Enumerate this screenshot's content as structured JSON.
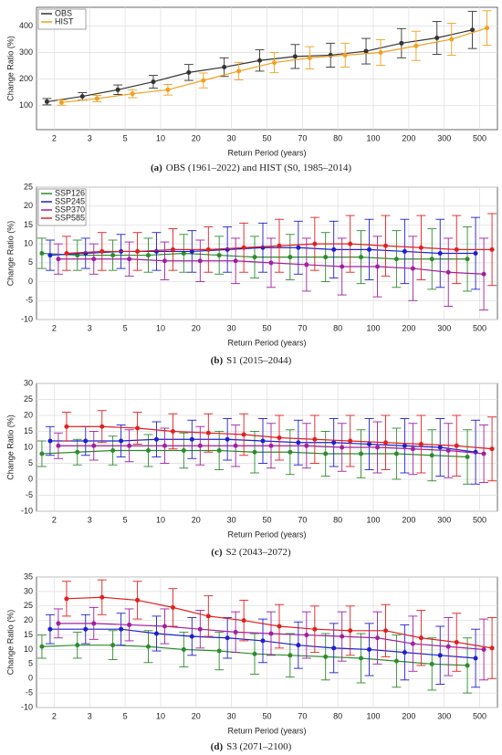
{
  "chart_data": [
    {
      "type": "line",
      "caption_label": "(a)",
      "caption": "OBS (1961–2022) and HIST (S0, 1985–2014)",
      "x_label": "Return Period (years)",
      "y_label": "Change Ratio (%)",
      "categories": [
        "2",
        "3",
        "5",
        "10",
        "20",
        "30",
        "50",
        "70",
        "80",
        "100",
        "200",
        "300",
        "500"
      ],
      "ylim": [
        10,
        470
      ],
      "yticks": [
        100,
        200,
        300,
        400
      ],
      "grid": true,
      "legend": "upper left",
      "series": [
        {
          "name": "OBS",
          "color": "#333333",
          "values": [
            115,
            135,
            160,
            190,
            225,
            245,
            270,
            285,
            290,
            305,
            335,
            355,
            385
          ],
          "errors": [
            12,
            14,
            18,
            24,
            30,
            35,
            40,
            45,
            45,
            48,
            55,
            62,
            70
          ]
        },
        {
          "name": "HIST",
          "color": "#f0a020",
          "values": [
            112,
            127,
            145,
            160,
            195,
            230,
            262,
            280,
            290,
            300,
            325,
            350,
            392
          ],
          "errors": [
            10,
            12,
            15,
            20,
            28,
            33,
            38,
            42,
            45,
            48,
            55,
            60,
            65
          ]
        }
      ]
    },
    {
      "type": "line",
      "caption_label": "(b)",
      "caption": "S1 (2015–2044)",
      "x_label": "Return Period (years)",
      "y_label": "Change Ratio (%)",
      "categories": [
        "2",
        "3",
        "5",
        "10",
        "20",
        "30",
        "50",
        "70",
        "80",
        "100",
        "200",
        "300",
        "500"
      ],
      "ylim": [
        -10,
        25
      ],
      "yticks": [
        -10,
        -5,
        0,
        5,
        10,
        15,
        20,
        25
      ],
      "grid": true,
      "legend": "upper left",
      "series": [
        {
          "name": "SSP126",
          "color": "#2e8b2e",
          "values": [
            7.5,
            7,
            7,
            7,
            7.5,
            7,
            6.5,
            6.5,
            6.5,
            6.5,
            6,
            6,
            6
          ],
          "errors": [
            4,
            4,
            4,
            4.5,
            5,
            5,
            5.5,
            6,
            6.5,
            7,
            7.5,
            8,
            8.5
          ]
        },
        {
          "name": "SSP245",
          "color": "#1f1fd0",
          "values": [
            7,
            7.5,
            8,
            8,
            8,
            8.5,
            9,
            9,
            8.5,
            8.5,
            8,
            7.5,
            7.5
          ],
          "errors": [
            4,
            4,
            4.5,
            5,
            5.5,
            6,
            6.5,
            7,
            7.5,
            8,
            8.5,
            9,
            9.5
          ]
        },
        {
          "name": "SSP370",
          "color": "#a020a0",
          "values": [
            6,
            6,
            6,
            5.5,
            5.5,
            5.5,
            5,
            4.5,
            4,
            4,
            3.5,
            2.5,
            2
          ],
          "errors": [
            4,
            4,
            4.5,
            5,
            5.5,
            6,
            6.5,
            7,
            7.5,
            8,
            8.5,
            9,
            9.5
          ]
        },
        {
          "name": "SSP585",
          "color": "#e02020",
          "values": [
            7.5,
            8,
            8,
            8.5,
            8.5,
            9,
            9.5,
            10,
            10,
            9.5,
            9,
            8.5,
            8.5
          ],
          "errors": [
            4.5,
            5,
            5,
            5.5,
            6,
            6.5,
            7,
            7,
            7.5,
            8,
            8.5,
            9,
            9.5
          ]
        }
      ]
    },
    {
      "type": "line",
      "caption_label": "(c)",
      "caption": "S2 (2043–2072)",
      "x_label": "Return Period (years)",
      "y_label": "Change Ratio (%)",
      "categories": [
        "2",
        "3",
        "5",
        "10",
        "20",
        "30",
        "50",
        "70",
        "80",
        "100",
        "200",
        "300",
        "500"
      ],
      "ylim": [
        -10,
        30
      ],
      "yticks": [
        -10,
        -5,
        0,
        5,
        10,
        15,
        20,
        25,
        30
      ],
      "grid": true,
      "series": [
        {
          "name": "SSP126",
          "color": "#2e8b2e",
          "values": [
            8,
            8.5,
            9,
            9,
            9,
            9,
            8.5,
            8.5,
            8,
            8,
            8,
            7.5,
            7
          ],
          "errors": [
            4,
            4,
            4.5,
            5,
            5.5,
            6,
            6.5,
            7,
            7,
            7.5,
            8,
            8,
            8.5
          ]
        },
        {
          "name": "SSP245",
          "color": "#1f1fd0",
          "values": [
            12,
            12,
            12,
            12.5,
            12.5,
            12.5,
            12,
            11.5,
            11.5,
            11,
            10.5,
            10,
            8.5
          ],
          "errors": [
            4.5,
            4.5,
            5,
            5.5,
            6,
            6.5,
            7,
            7,
            7.5,
            8,
            8.5,
            9,
            10
          ]
        },
        {
          "name": "SSP370",
          "color": "#a020a0",
          "values": [
            10.5,
            10.5,
            10.5,
            10.5,
            10.5,
            10.5,
            10.5,
            10.5,
            10,
            10,
            9.5,
            9,
            8
          ],
          "errors": [
            4,
            4.5,
            5,
            5.5,
            6,
            6.5,
            7,
            7,
            7.5,
            8,
            8,
            8.5,
            9
          ]
        },
        {
          "name": "SSP585",
          "color": "#e02020",
          "values": [
            16.5,
            16.5,
            16,
            15,
            14.5,
            14,
            13,
            12.5,
            12,
            11.5,
            11,
            10.5,
            9.5
          ],
          "errors": [
            4.5,
            5,
            5,
            5.5,
            6,
            6.5,
            7,
            7.5,
            8,
            8.5,
            9,
            9.5,
            10
          ]
        }
      ]
    },
    {
      "type": "line",
      "caption_label": "(d)",
      "caption": "S3 (2071–2100)",
      "x_label": "Return Period (years)",
      "y_label": "Change Ratio (%)",
      "categories": [
        "2",
        "3",
        "5",
        "10",
        "20",
        "30",
        "50",
        "70",
        "80",
        "100",
        "200",
        "300",
        "500"
      ],
      "ylim": [
        -10,
        35
      ],
      "yticks": [
        -10,
        -5,
        0,
        5,
        10,
        15,
        20,
        25,
        30,
        35
      ],
      "grid": true,
      "series": [
        {
          "name": "SSP126",
          "color": "#2e8b2e",
          "values": [
            11,
            11.5,
            11.5,
            11,
            10,
            9.5,
            8.5,
            8,
            7.5,
            7,
            6,
            5,
            4.5
          ],
          "errors": [
            4,
            4.5,
            5,
            5.5,
            6,
            6.5,
            7,
            7.5,
            8,
            8.5,
            9,
            9,
            9.5
          ]
        },
        {
          "name": "SSP245",
          "color": "#1f1fd0",
          "values": [
            17,
            17,
            17,
            15.5,
            14.5,
            14,
            13,
            11.5,
            10.5,
            10,
            9,
            8,
            7
          ],
          "errors": [
            5,
            5,
            5.5,
            6,
            6.5,
            7,
            7.5,
            8,
            8.5,
            9,
            9.5,
            10,
            10
          ]
        },
        {
          "name": "SSP370",
          "color": "#a020a0",
          "values": [
            19,
            19,
            18.5,
            18,
            17,
            16,
            15.5,
            15,
            14.5,
            14,
            12,
            11,
            10
          ],
          "errors": [
            5,
            5.5,
            5.5,
            6,
            6.5,
            7,
            7.5,
            8,
            8.5,
            9,
            9.5,
            10,
            10.5
          ]
        },
        {
          "name": "SSP585",
          "color": "#e02020",
          "values": [
            27.5,
            28,
            27,
            24.5,
            21.5,
            20,
            18,
            17,
            16.5,
            16.5,
            14,
            12.5,
            10.5
          ],
          "errors": [
            6,
            6,
            6.5,
            6.5,
            7,
            7,
            7.5,
            8,
            8.5,
            9,
            9.5,
            10,
            10.5
          ]
        }
      ]
    }
  ]
}
